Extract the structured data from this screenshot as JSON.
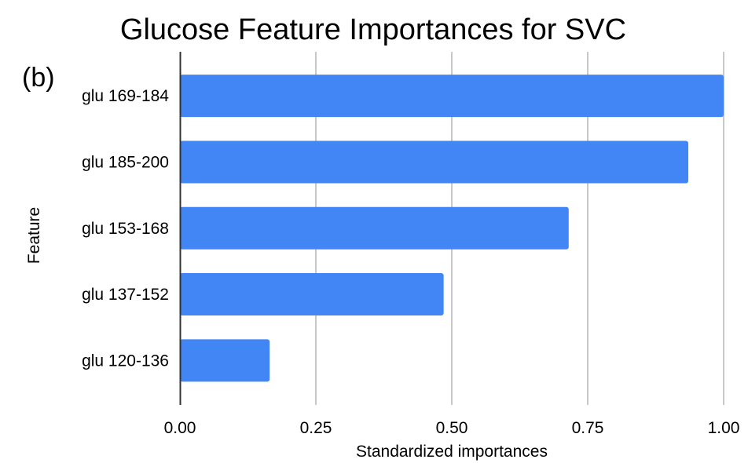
{
  "panel_label": "(b)",
  "chart_data": {
    "type": "bar",
    "orientation": "horizontal",
    "title": "Glucose Feature Importances for SVC",
    "xlabel": "Standardized importances",
    "ylabel": "Feature",
    "categories": [
      "glu 169-184",
      "glu 185-200",
      "glu 153-168",
      "glu 137-152",
      "glu 120-136"
    ],
    "values": [
      1.0,
      0.935,
      0.715,
      0.485,
      0.165
    ],
    "xlim": [
      0,
      1
    ],
    "xticks": [
      "0.00",
      "0.25",
      "0.50",
      "0.75",
      "1.00"
    ],
    "grid": "vertical",
    "legend": "none",
    "bar_color": "#4285f4",
    "grid_color": "#c8c8c8"
  }
}
